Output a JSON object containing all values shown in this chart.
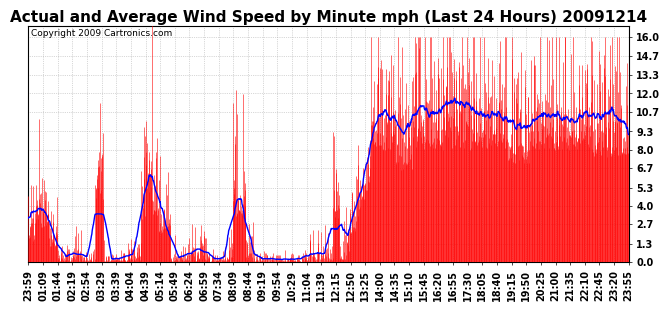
{
  "title": "Actual and Average Wind Speed by Minute mph (Last 24 Hours) 20091214",
  "copyright": "Copyright 2009 Cartronics.com",
  "yticks": [
    0.0,
    1.3,
    2.7,
    4.0,
    5.3,
    6.7,
    8.0,
    9.3,
    10.7,
    12.0,
    13.3,
    14.7,
    16.0
  ],
  "ylim": [
    0.0,
    16.8
  ],
  "bar_color": "#ff0000",
  "line_color": "#0000ff",
  "background_color": "#ffffff",
  "grid_color": "#aaaaaa",
  "title_fontsize": 11,
  "copyright_fontsize": 6.5,
  "tick_fontsize": 7,
  "xtick_labels": [
    "23:59",
    "01:09",
    "01:44",
    "02:19",
    "02:54",
    "03:29",
    "03:39",
    "04:04",
    "04:39",
    "05:14",
    "05:49",
    "06:24",
    "06:59",
    "07:34",
    "08:09",
    "08:44",
    "09:19",
    "09:54",
    "10:29",
    "11:04",
    "11:39",
    "12:15",
    "12:50",
    "13:25",
    "14:00",
    "14:35",
    "15:10",
    "15:45",
    "16:20",
    "16:55",
    "17:30",
    "18:05",
    "18:40",
    "19:15",
    "19:50",
    "20:25",
    "21:00",
    "21:35",
    "22:10",
    "22:45",
    "23:20",
    "23:55"
  ]
}
